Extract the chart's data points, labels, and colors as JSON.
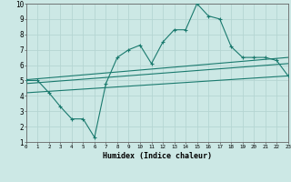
{
  "zigzag_x": [
    0,
    1,
    2,
    3,
    4,
    5,
    6,
    7,
    8,
    9,
    10,
    11,
    12,
    13,
    14,
    15,
    16,
    17,
    18,
    19,
    20,
    21,
    22,
    23
  ],
  "zigzag_y": [
    5.0,
    5.0,
    4.2,
    3.3,
    2.5,
    2.5,
    1.3,
    4.8,
    6.5,
    7.0,
    7.3,
    6.1,
    7.5,
    8.3,
    8.3,
    10.0,
    9.2,
    9.0,
    7.2,
    6.5,
    6.5,
    6.5,
    6.3,
    5.3
  ],
  "line1_x": [
    0,
    23
  ],
  "line1_y": [
    5.05,
    6.5
  ],
  "line2_x": [
    0,
    23
  ],
  "line2_y": [
    4.8,
    6.1
  ],
  "line3_x": [
    0,
    23
  ],
  "line3_y": [
    4.2,
    5.3
  ],
  "line_color": "#1a7a6e",
  "bg_color": "#cce8e5",
  "grid_color": "#b5d5d2",
  "xlabel": "Humidex (Indice chaleur)",
  "xlim": [
    0,
    23
  ],
  "ylim": [
    1,
    10
  ],
  "xticks": [
    0,
    1,
    2,
    3,
    4,
    5,
    6,
    7,
    8,
    9,
    10,
    11,
    12,
    13,
    14,
    15,
    16,
    17,
    18,
    19,
    20,
    21,
    22,
    23
  ],
  "yticks": [
    1,
    2,
    3,
    4,
    5,
    6,
    7,
    8,
    9,
    10
  ],
  "marker": "+"
}
